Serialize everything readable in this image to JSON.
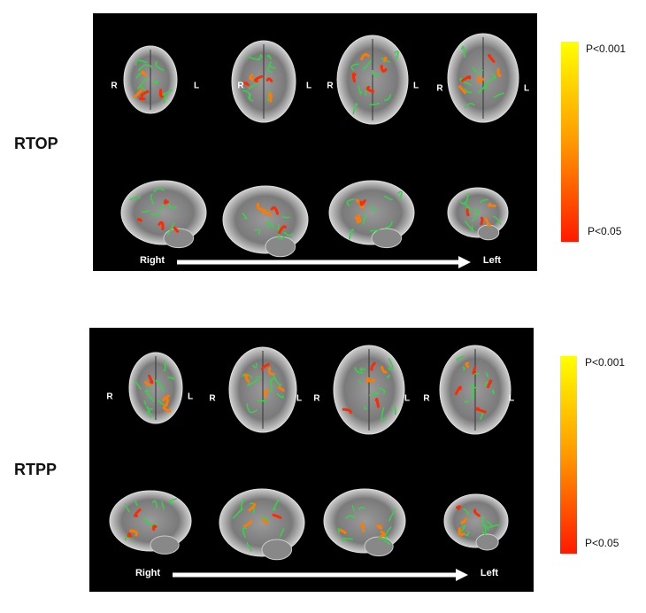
{
  "panels": [
    {
      "label": "RTOP",
      "axial": [
        {
          "right": "R",
          "left": "L"
        },
        {
          "right": "R",
          "left": "L"
        },
        {
          "right": "R",
          "left": "L"
        },
        {
          "right": "R",
          "left": "L"
        }
      ],
      "arrow": {
        "start": "Right",
        "end": "Left"
      },
      "colorbar": {
        "top": "P<0.001",
        "bottom": "P<0.05"
      }
    },
    {
      "label": "RTPP",
      "axial": [
        {
          "right": "R",
          "left": "L"
        },
        {
          "right": "R",
          "left": "L"
        },
        {
          "right": "R",
          "left": "L"
        },
        {
          "right": "R",
          "left": "L"
        }
      ],
      "arrow": {
        "start": "Right",
        "end": "Left"
      },
      "colorbar": {
        "top": "P<0.001",
        "bottom": "P<0.05"
      }
    }
  ]
}
